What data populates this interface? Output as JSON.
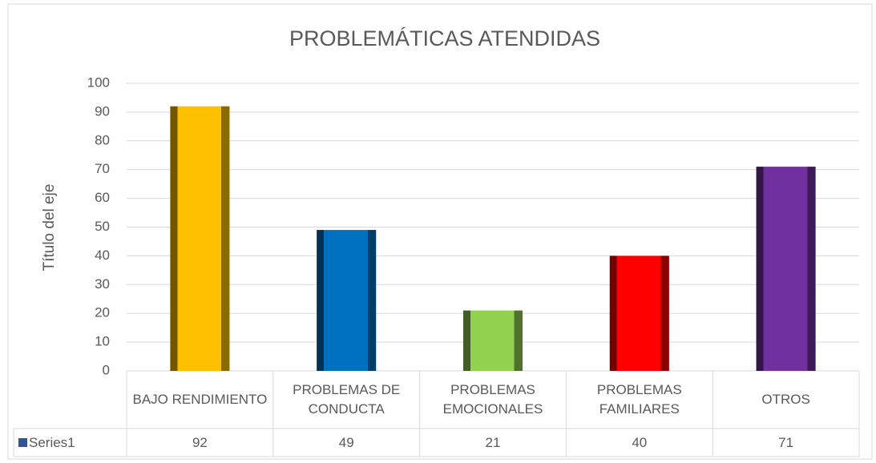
{
  "chart_data": {
    "type": "bar",
    "title": "PROBLEMÁTICAS ATENDIDAS",
    "y_label": "Título del eje",
    "categories": [
      "BAJO RENDIMIENTO",
      "PROBLEMAS DE CONDUCTA",
      "PROBLEMAS EMOCIONALES",
      "PROBLEMAS FAMILIARES",
      "OTROS"
    ],
    "series_name": "Series1",
    "series_color": "#2e5597",
    "values": [
      92,
      49,
      21,
      40,
      71
    ],
    "colors": [
      "#ffc000",
      "#0070c0",
      "#92d050",
      "#ff0000",
      "#7030a0"
    ],
    "ylim": [
      0,
      100
    ],
    "yticks": [
      0,
      10,
      20,
      30,
      40,
      50,
      60,
      70,
      80,
      90,
      100
    ],
    "grid": true
  }
}
